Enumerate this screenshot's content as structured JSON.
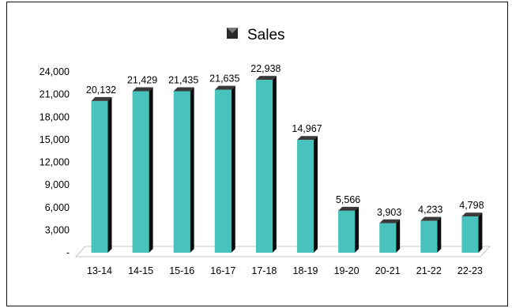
{
  "chart_data": {
    "type": "bar",
    "title": "",
    "xlabel": "",
    "ylabel": "",
    "legend": {
      "label": "Sales",
      "placement": "top"
    },
    "categories": [
      "13-14",
      "14-15",
      "15-16",
      "16-17",
      "17-18",
      "18-19",
      "19-20",
      "20-21",
      "21-22",
      "22-23"
    ],
    "series": [
      {
        "name": "Sales",
        "values": [
          20132,
          21429,
          21435,
          21635,
          22938,
          14967,
          5566,
          3903,
          4233,
          4798
        ]
      }
    ],
    "data_labels": [
      "20,132",
      "21,429",
      "21,435",
      "21,635",
      "22,938",
      "14,967",
      "5,566",
      "3,903",
      "4,233",
      "4,798"
    ],
    "y_ticks": [
      0,
      3000,
      6000,
      9000,
      12000,
      15000,
      18000,
      21000,
      24000
    ],
    "y_tick_labels": [
      "-",
      "3,000",
      "6,000",
      "9,000",
      "12,000",
      "15,000",
      "18,000",
      "21,000",
      "24,000"
    ],
    "ylim": [
      0,
      24000
    ],
    "grid": false,
    "colors": {
      "bar_face": "#48C2BC",
      "bar_side": "#0d0d0d",
      "bar_top": "#3a3a3a",
      "floor": "#ffffff",
      "floor_edge": "#c8c8c8"
    }
  }
}
